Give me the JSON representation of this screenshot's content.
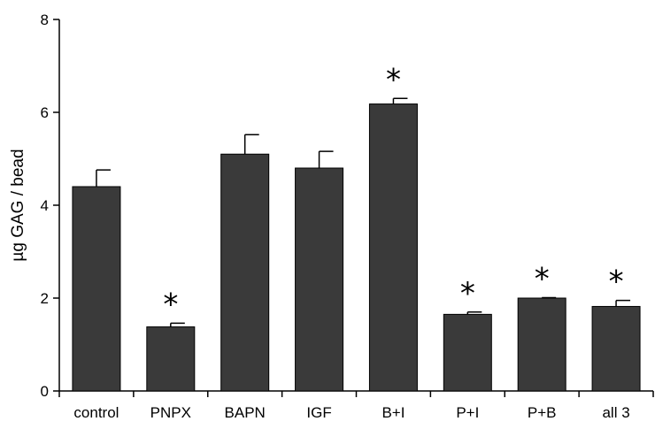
{
  "chart_data": {
    "type": "bar",
    "title": "",
    "xlabel": "",
    "ylabel": "µg GAG / bead",
    "ylim": [
      0,
      8
    ],
    "yticks": [
      0,
      2,
      4,
      6,
      8
    ],
    "grid": false,
    "categories": [
      "control",
      "PNPX",
      "BAPN",
      "IGF",
      "B+I",
      "P+I",
      "P+B",
      "all 3"
    ],
    "values": [
      4.4,
      1.38,
      5.1,
      4.8,
      6.18,
      1.65,
      2.0,
      1.82
    ],
    "error_upper": [
      0.36,
      0.08,
      0.42,
      0.36,
      0.12,
      0.05,
      0.01,
      0.13
    ],
    "significance_marker": "*",
    "significant": [
      false,
      true,
      false,
      false,
      true,
      true,
      true,
      true
    ],
    "bar_color": "#3a3a3a"
  }
}
